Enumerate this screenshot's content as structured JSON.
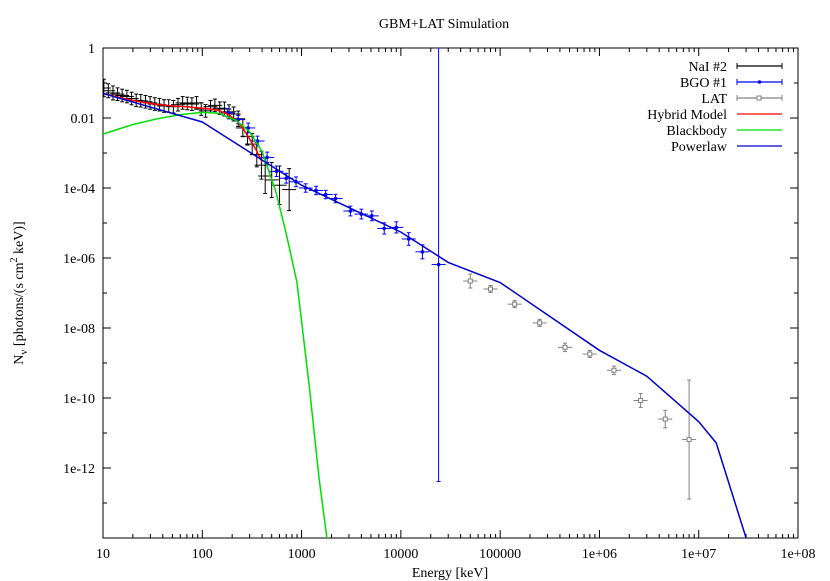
{
  "chart_data": {
    "type": "line",
    "title": "GBM+LAT Simulation",
    "xlabel": "Energy [keV]",
    "ylabel": {
      "main": "N",
      "sub": "ν",
      "rest": " [photons/(s cm",
      "sup": "2",
      "end": " keV)]"
    },
    "x_scale": "log",
    "y_scale": "log",
    "xlim": [
      10,
      100000000
    ],
    "ylim": [
      1e-14,
      1
    ],
    "x_ticks": [
      {
        "value": 10,
        "label": "10"
      },
      {
        "value": 100,
        "label": "100"
      },
      {
        "value": 1000,
        "label": "1000"
      },
      {
        "value": 10000,
        "label": "10000"
      },
      {
        "value": 100000,
        "label": "100000"
      },
      {
        "value": 1000000,
        "label": "1e+06"
      },
      {
        "value": 10000000,
        "label": "1e+07"
      },
      {
        "value": 100000000,
        "label": "1e+08"
      }
    ],
    "y_ticks": [
      {
        "value": 1,
        "label": "1"
      },
      {
        "value": 0.01,
        "label": "0.01"
      },
      {
        "value": 0.0001,
        "label": "1e-04"
      },
      {
        "value": 1e-06,
        "label": "1e-06"
      },
      {
        "value": 1e-08,
        "label": "1e-08"
      },
      {
        "value": 1e-10,
        "label": "1e-10"
      },
      {
        "value": 1e-12,
        "label": "1e-12"
      }
    ],
    "grid": false,
    "legend_position": "top-right",
    "series": [
      {
        "name": "NaI #2",
        "kind": "errorbar",
        "color": "#000000",
        "points": [
          {
            "x": 10.2,
            "y": 0.072,
            "err": 0.25
          },
          {
            "x": 11.3,
            "y": 0.06,
            "err": 0.2
          },
          {
            "x": 12.6,
            "y": 0.052,
            "err": 0.2
          },
          {
            "x": 14,
            "y": 0.048,
            "err": 0.18
          },
          {
            "x": 15.6,
            "y": 0.044,
            "err": 0.18
          },
          {
            "x": 17.4,
            "y": 0.041,
            "err": 0.18
          },
          {
            "x": 19.4,
            "y": 0.036,
            "err": 0.18
          },
          {
            "x": 21.6,
            "y": 0.032,
            "err": 0.18
          },
          {
            "x": 24,
            "y": 0.031,
            "err": 0.18
          },
          {
            "x": 26.8,
            "y": 0.029,
            "err": 0.18
          },
          {
            "x": 29.8,
            "y": 0.027,
            "err": 0.18
          },
          {
            "x": 33.2,
            "y": 0.025,
            "err": 0.18
          },
          {
            "x": 37,
            "y": 0.024,
            "err": 0.18
          },
          {
            "x": 41.2,
            "y": 0.022,
            "err": 0.18
          },
          {
            "x": 45.9,
            "y": 0.022,
            "err": 0.18
          },
          {
            "x": 51.1,
            "y": 0.021,
            "err": 0.18
          },
          {
            "x": 56.9,
            "y": 0.024,
            "err": 0.18
          },
          {
            "x": 63.4,
            "y": 0.027,
            "err": 0.18
          },
          {
            "x": 70.6,
            "y": 0.026,
            "err": 0.18
          },
          {
            "x": 78.6,
            "y": 0.025,
            "err": 0.18
          },
          {
            "x": 87.5,
            "y": 0.027,
            "err": 0.18
          },
          {
            "x": 97.5,
            "y": 0.018,
            "err": 0.18
          },
          {
            "x": 108,
            "y": 0.016,
            "err": 0.18
          },
          {
            "x": 121,
            "y": 0.021,
            "err": 0.18
          },
          {
            "x": 134,
            "y": 0.023,
            "err": 0.18
          },
          {
            "x": 150,
            "y": 0.019,
            "err": 0.18
          },
          {
            "x": 167,
            "y": 0.018,
            "err": 0.2
          },
          {
            "x": 186,
            "y": 0.015,
            "err": 0.2
          },
          {
            "x": 207,
            "y": 0.013,
            "err": 0.2
          },
          {
            "x": 230,
            "y": 0.0095,
            "err": 0.22
          },
          {
            "x": 256,
            "y": 0.0052,
            "err": 0.25
          },
          {
            "x": 285,
            "y": 0.003,
            "err": 0.25
          },
          {
            "x": 318,
            "y": 0.0018,
            "err": 0.3
          },
          {
            "x": 354,
            "y": 0.0009,
            "err": 0.35
          },
          {
            "x": 394,
            "y": 0.00045,
            "err": 0.4
          },
          {
            "x": 430,
            "y": 0.00022,
            "err": 0.5
          },
          {
            "x": 500,
            "y": 0.00017,
            "err": 0.5
          },
          {
            "x": 600,
            "y": 0.00012,
            "err": 0.55
          },
          {
            "x": 750,
            "y": 9e-05,
            "err": 0.6
          }
        ]
      },
      {
        "name": "BGO #1",
        "kind": "errorbar",
        "color": "#0000ff",
        "points": [
          {
            "x": 180,
            "y": 0.014,
            "err": 0.12
          },
          {
            "x": 230,
            "y": 0.009,
            "err": 0.12
          },
          {
            "x": 290,
            "y": 0.0052,
            "err": 0.14
          },
          {
            "x": 360,
            "y": 0.0022,
            "err": 0.14
          },
          {
            "x": 450,
            "y": 0.00075,
            "err": 0.15
          },
          {
            "x": 560,
            "y": 0.0003,
            "err": 0.15
          },
          {
            "x": 700,
            "y": 0.00019,
            "err": 0.14
          },
          {
            "x": 880,
            "y": 0.00015,
            "err": 0.14
          },
          {
            "x": 1100,
            "y": 0.0001,
            "err": 0.12
          },
          {
            "x": 1400,
            "y": 8.5e-05,
            "err": 0.12
          },
          {
            "x": 1750,
            "y": 6.5e-05,
            "err": 0.12
          },
          {
            "x": 2200,
            "y": 5e-05,
            "err": 0.12
          },
          {
            "x": 3100,
            "y": 2.2e-05,
            "err": 0.14
          },
          {
            "x": 4000,
            "y": 1.8e-05,
            "err": 0.14
          },
          {
            "x": 5100,
            "y": 1.6e-05,
            "err": 0.14
          },
          {
            "x": 6800,
            "y": 7e-06,
            "err": 0.16
          },
          {
            "x": 9000,
            "y": 7.5e-06,
            "err": 0.16
          },
          {
            "x": 12000,
            "y": 3.5e-06,
            "err": 0.18
          },
          {
            "x": 16500,
            "y": 1.5e-06,
            "err": 0.2
          },
          {
            "x": 24000,
            "y": 6.5e-07,
            "err": 6.2
          }
        ]
      },
      {
        "name": "LAT",
        "kind": "errorbar",
        "color": "#808080",
        "points": [
          {
            "x": 50000,
            "y": 2.2e-07,
            "err": 0.2
          },
          {
            "x": 80000,
            "y": 1.3e-07,
            "err": 0.1
          },
          {
            "x": 140000,
            "y": 4.8e-08,
            "err": 0.1
          },
          {
            "x": 250000,
            "y": 1.4e-08,
            "err": 0.1
          },
          {
            "x": 450000,
            "y": 2.8e-09,
            "err": 0.12
          },
          {
            "x": 800000,
            "y": 1.8e-09,
            "err": 0.1
          },
          {
            "x": 1400000,
            "y": 6.2e-10,
            "err": 0.12
          },
          {
            "x": 2600000,
            "y": 8.5e-11,
            "err": 0.2
          },
          {
            "x": 4600000,
            "y": 2.5e-11,
            "err": 0.25
          },
          {
            "x": 8000000,
            "y": 6.5e-12,
            "err": 1.7
          }
        ]
      },
      {
        "name": "Hybrid Model",
        "kind": "line",
        "color": "#ff0000",
        "x": [
          10,
          15,
          22,
          33,
          50,
          70,
          100,
          140,
          180,
          220,
          260,
          300,
          350,
          400
        ],
        "y": [
          0.05,
          0.038,
          0.03,
          0.025,
          0.022,
          0.021,
          0.019,
          0.017,
          0.013,
          0.0085,
          0.0048,
          0.0025,
          0.0012,
          0.00055
        ]
      },
      {
        "name": "Blackbody",
        "kind": "line",
        "color": "#00dd00",
        "x": [
          10,
          20,
          35,
          60,
          100,
          150,
          220,
          300,
          400,
          550,
          700,
          900,
          1200,
          1500,
          1800,
          2000
        ],
        "y": [
          0.0035,
          0.0065,
          0.0095,
          0.0125,
          0.0145,
          0.0135,
          0.0085,
          0.004,
          0.0011,
          8e-05,
          5e-06,
          2e-07,
          2e-10,
          5e-13,
          1e-14,
          1e-15
        ]
      },
      {
        "name": "Powerlaw",
        "kind": "line",
        "color": "#0000cc",
        "x": [
          10,
          100,
          1000,
          10000,
          30000,
          100000,
          1000000,
          3000000,
          10000000,
          15000000,
          30000000
        ],
        "y": [
          0.05,
          0.0077,
          0.00012,
          5.5e-06,
          7.5e-07,
          2e-07,
          2.3e-09,
          4.2e-10,
          2.1e-11,
          5.2e-12,
          1e-14
        ]
      }
    ]
  }
}
